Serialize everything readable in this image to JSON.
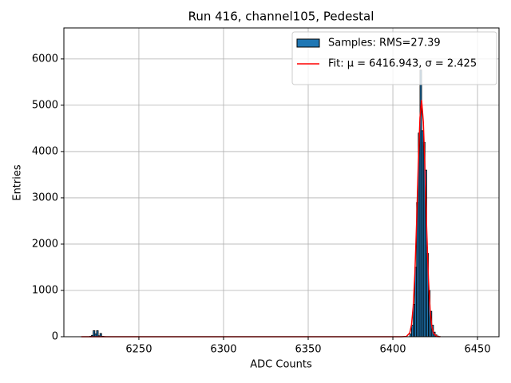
{
  "chart_data": {
    "type": "histogram",
    "title": "Run 416, channel105, Pedestal",
    "xlabel": "ADC Counts",
    "ylabel": "Entries",
    "xlim": [
      6205.7,
      6462.7
    ],
    "ylim": [
      0,
      6670
    ],
    "xticks": [
      6250,
      6300,
      6350,
      6400,
      6450
    ],
    "yticks": [
      0,
      1000,
      2000,
      3000,
      4000,
      5000,
      6000
    ],
    "grid": true,
    "legend": "upper right",
    "series": [
      {
        "name": "Samples: RMS=27.39",
        "type": "histogram",
        "color": "#1f77b4",
        "edgecolor": "#000000",
        "bins": [
          6221,
          6222,
          6223,
          6224,
          6225,
          6226,
          6227,
          6228,
          6229,
          6230,
          6410,
          6411,
          6412,
          6413,
          6414,
          6415,
          6416,
          6417,
          6418,
          6419,
          6420,
          6421,
          6422,
          6423,
          6424,
          6425,
          6426,
          6427,
          6428
        ],
        "values": [
          10,
          30,
          130,
          60,
          130,
          20,
          70,
          10,
          5,
          0,
          60,
          250,
          700,
          1500,
          2900,
          4400,
          5760,
          4450,
          4200,
          3600,
          1800,
          1000,
          550,
          250,
          100,
          40,
          15,
          5
        ]
      },
      {
        "name": "Fit: μ = 6416.943, σ = 2.425",
        "type": "line",
        "color": "#ff0000",
        "x": [
          6216,
          6405,
          6408,
          6410,
          6411,
          6412,
          6413,
          6414,
          6415,
          6416,
          6416.943,
          6417,
          6418,
          6419,
          6420,
          6421,
          6422,
          6423,
          6424,
          6426,
          6428
        ],
        "values": [
          0,
          0,
          5.7,
          84.6,
          253,
          639,
          1360,
          2442,
          3700,
          4728,
          5100,
          5099,
          4637,
          3558,
          2304,
          1258,
          580,
          225,
          74,
          4.8,
          0
        ]
      }
    ]
  }
}
